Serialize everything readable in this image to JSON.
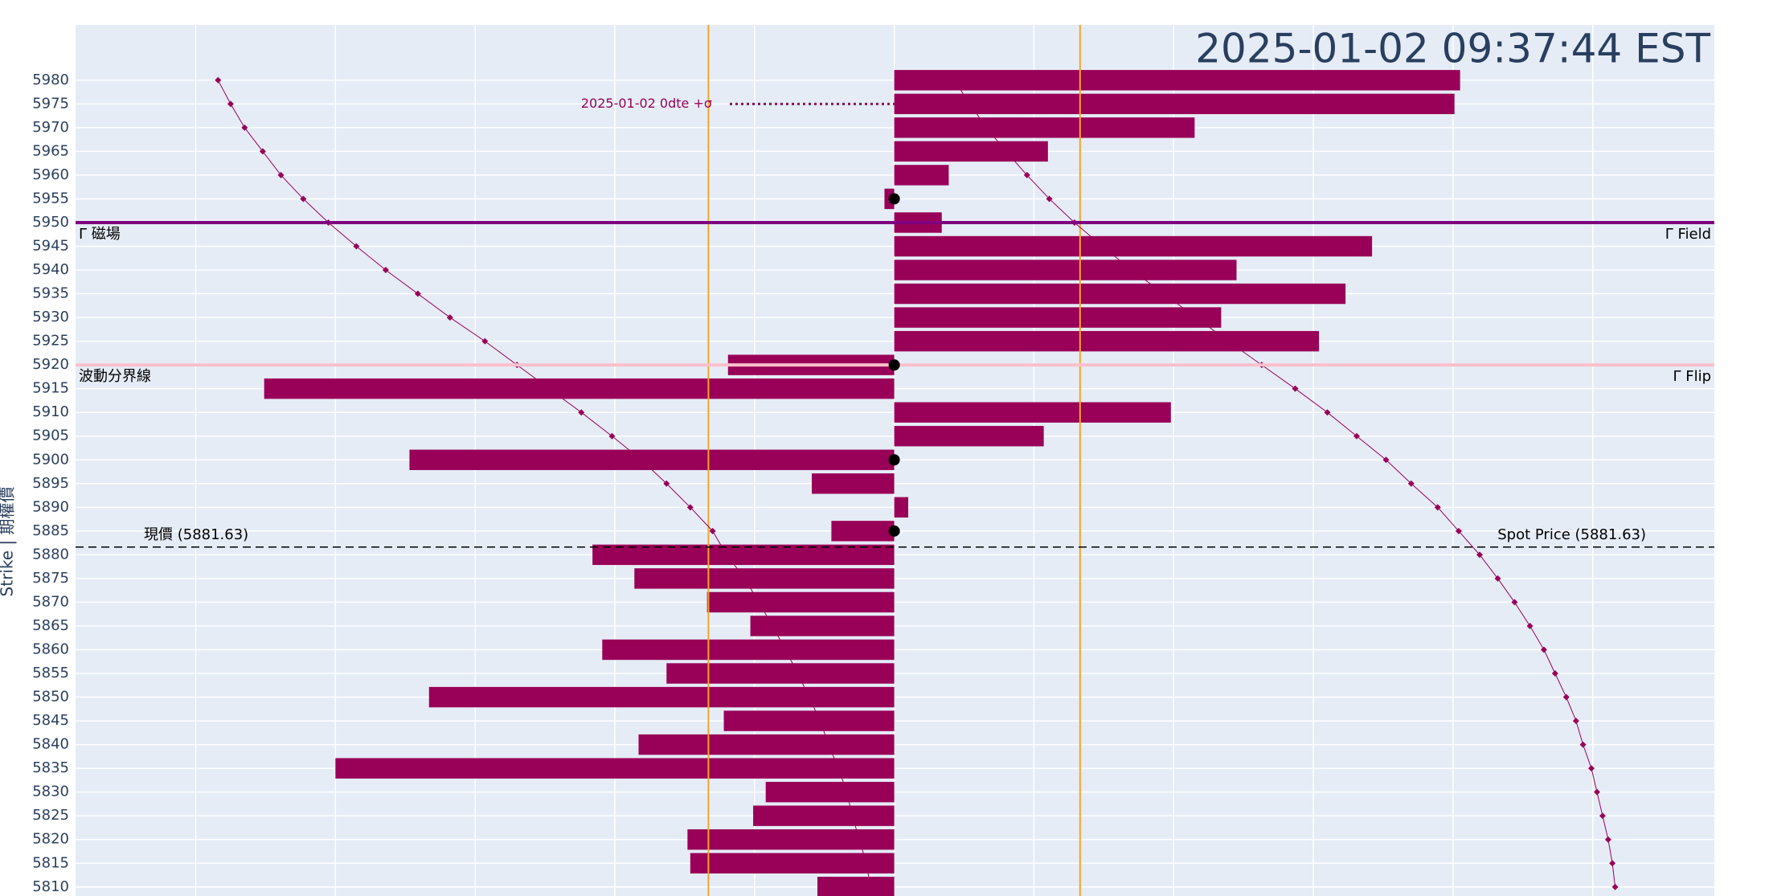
{
  "chart_data": {
    "type": "hbar",
    "title": "2025-01-02 09:37:44 EST",
    "y_label": "Strike | 期權價",
    "y": [
      5980,
      5975,
      5970,
      5965,
      5960,
      5955,
      5950,
      5945,
      5940,
      5935,
      5930,
      5925,
      5920,
      5915,
      5910,
      5905,
      5900,
      5895,
      5890,
      5885,
      5880,
      5875,
      5870,
      5865,
      5860,
      5855,
      5850,
      5845,
      5840,
      5835,
      5830,
      5825,
      5820,
      5815,
      5810
    ],
    "yticks": [
      5980,
      5975,
      5970,
      5965,
      5960,
      5955,
      5950,
      5945,
      5940,
      5935,
      5930,
      5925,
      5920,
      5915,
      5910,
      5905,
      5900,
      5895,
      5890,
      5885,
      5880,
      5875,
      5870,
      5865,
      5860,
      5855,
      5850,
      5845,
      5840,
      5835,
      5830,
      5825,
      5820,
      5815,
      5810
    ],
    "ylim": [
      5808.1,
      5991.65
    ],
    "xlim": [
      -5.86,
      5.87
    ],
    "xgrid": [
      -5,
      -4,
      -3,
      -2,
      -1,
      0,
      1,
      2,
      3,
      4,
      5
    ],
    "grid": true,
    "series": [
      {
        "color": "#990057",
        "values": [
          4.05,
          4.01,
          2.15,
          1.1,
          0.39,
          -0.07,
          0.34,
          3.42,
          2.45,
          3.23,
          2.34,
          3.04,
          -1.19,
          -4.51,
          1.98,
          1.07,
          -3.47,
          -0.59,
          0.1,
          -0.45,
          -2.16,
          -1.86,
          -1.34,
          -1.03,
          -2.09,
          -1.63,
          -3.33,
          -1.22,
          -1.83,
          -4.0,
          -0.92,
          -1.01,
          -1.48,
          -1.46,
          -0.55
        ]
      }
    ],
    "curves": [
      {
        "color": "#990057",
        "values": [
          -4.84,
          -4.75,
          -4.65,
          -4.52,
          -4.39,
          -4.23,
          -4.05,
          -3.85,
          -3.64,
          -3.41,
          -3.18,
          -2.93,
          -2.7,
          -2.47,
          -2.24,
          -2.02,
          -1.81,
          -1.63,
          -1.46,
          -1.3,
          -1.2,
          -1.07,
          -0.97,
          -0.87,
          -0.78,
          -0.69,
          -0.61,
          -0.53,
          -0.47,
          -0.4,
          -0.34,
          -0.3,
          -0.25,
          -0.2,
          -0.17
        ]
      },
      {
        "color": "#990057",
        "values": [
          0.43,
          0.54,
          0.66,
          0.8,
          0.95,
          1.11,
          1.29,
          1.49,
          1.7,
          1.93,
          2.16,
          2.39,
          2.63,
          2.87,
          3.1,
          3.31,
          3.52,
          3.7,
          3.89,
          4.04,
          4.19,
          4.32,
          4.44,
          4.55,
          4.65,
          4.73,
          4.81,
          4.88,
          4.93,
          4.99,
          5.03,
          5.07,
          5.11,
          5.14,
          5.16
        ]
      }
    ],
    "dot_strikes": [
      5955,
      5920,
      5900,
      5885
    ],
    "vlines": [
      {
        "value": -1.33,
        "color": "#f5a623"
      },
      {
        "value": 1.33,
        "color": "#f5a623"
      }
    ],
    "hlines": [
      {
        "value": 5950,
        "color": "#800080",
        "label_left": "Γ 磁場",
        "label_right": "Γ Field"
      },
      {
        "value": 5920,
        "color": "#ffc0cb",
        "label_left": "波動分界線",
        "label_right": "Γ Flip"
      }
    ],
    "spot": {
      "value": 5881.63,
      "label_left": "現價 (5881.63)",
      "label_right": "Spot Price (5881.63)"
    },
    "annotation": {
      "text": "2025-01-02 0dte +σ",
      "y": 5975
    }
  }
}
